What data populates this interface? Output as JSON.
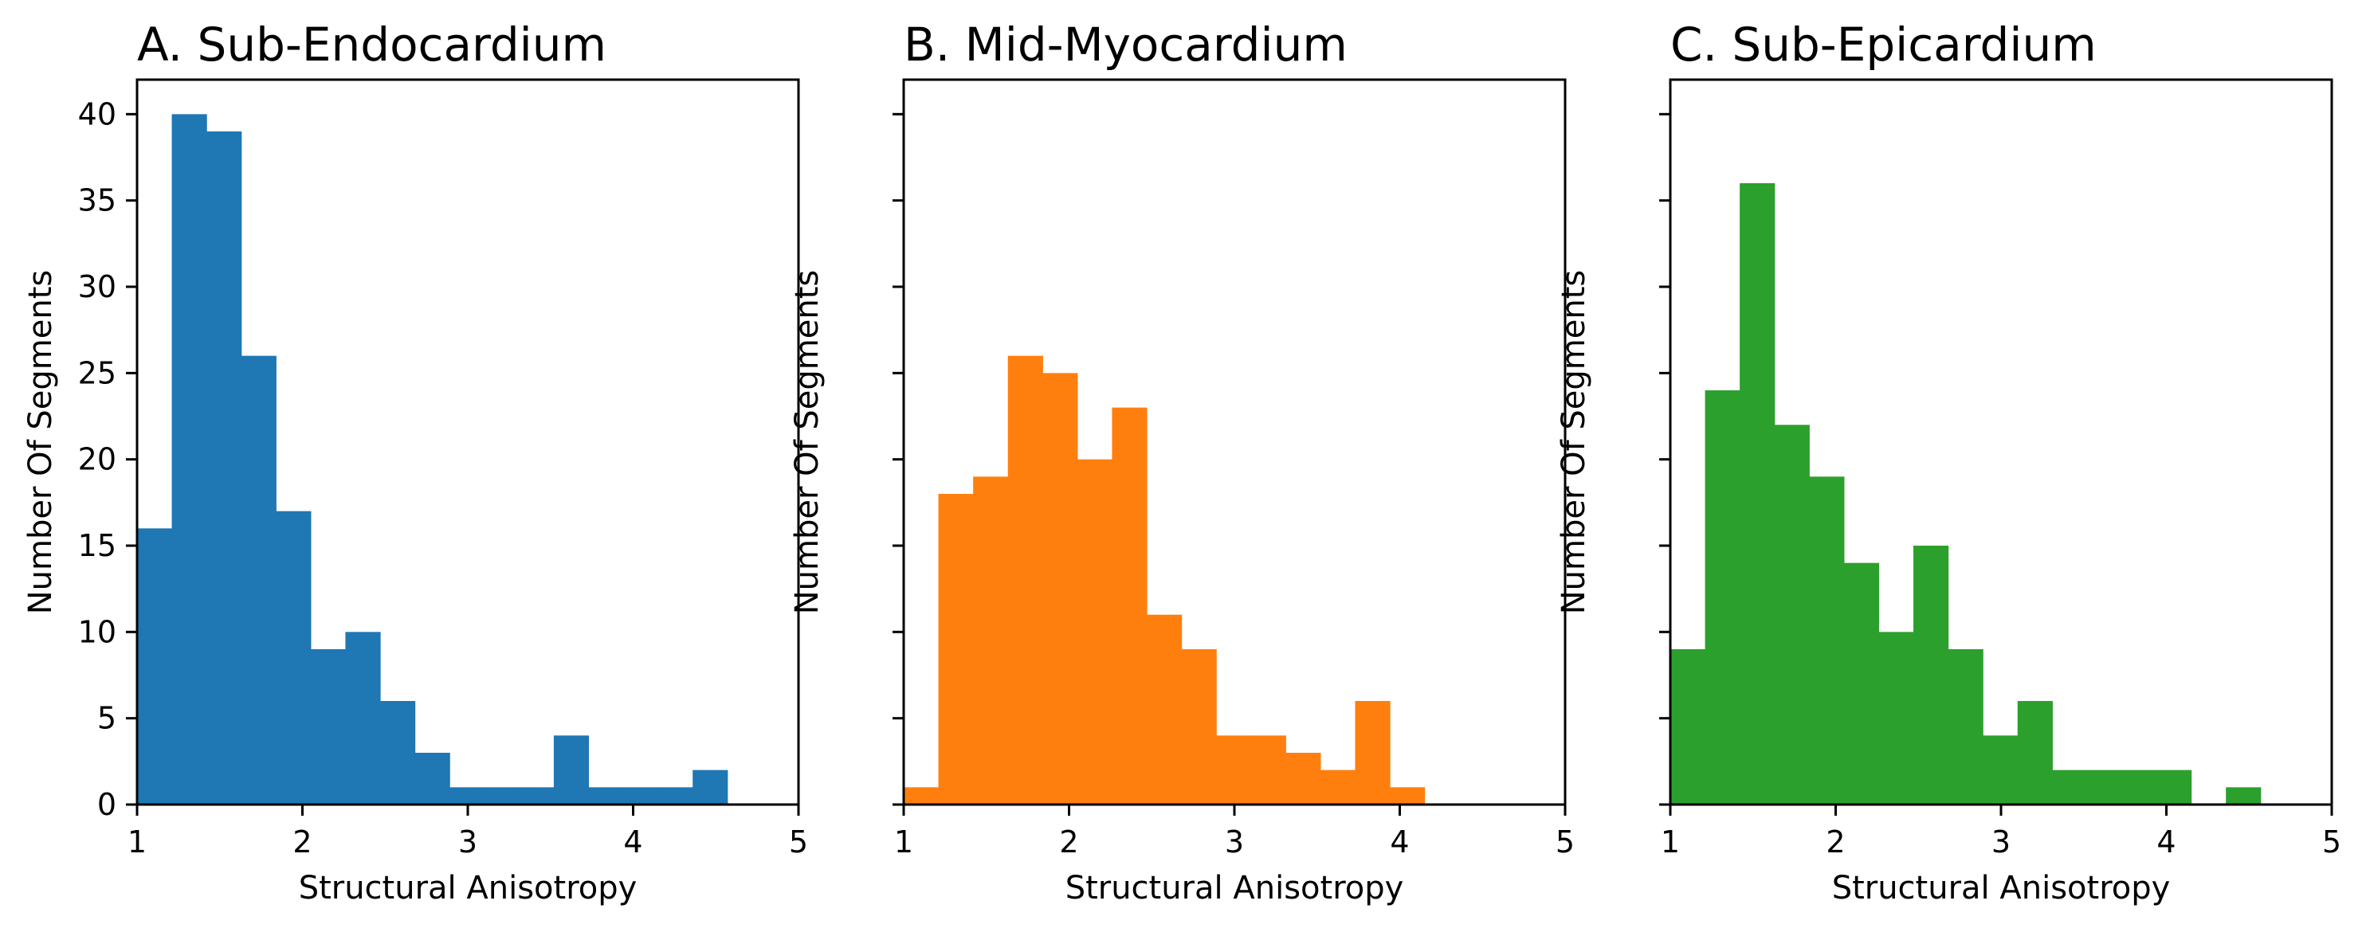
{
  "chart_data": [
    {
      "type": "bar",
      "subtype": "histogram",
      "title": "A. Sub-Endocardium",
      "xlabel": "Structural Anisotropy",
      "ylabel": "Number Of Segments",
      "xlim": [
        1,
        5
      ],
      "ylim": [
        0,
        42
      ],
      "xticks": [
        1,
        2,
        3,
        4,
        5
      ],
      "yticks": [
        0,
        5,
        10,
        15,
        20,
        25,
        30,
        35,
        40
      ],
      "show_ytick_labels": true,
      "color": "#1f77b4",
      "bin_start": 1.0,
      "bin_width": 0.21,
      "values": [
        16,
        40,
        39,
        26,
        17,
        9,
        10,
        6,
        3,
        1,
        1,
        1,
        4,
        1,
        1,
        1,
        2
      ]
    },
    {
      "type": "bar",
      "subtype": "histogram",
      "title": "B. Mid-Myocardium",
      "xlabel": "Structural Anisotropy",
      "ylabel": "Number Of Segments",
      "xlim": [
        1,
        5
      ],
      "ylim": [
        0,
        42
      ],
      "xticks": [
        1,
        2,
        3,
        4,
        5
      ],
      "yticks": [
        0,
        5,
        10,
        15,
        20,
        25,
        30,
        35,
        40
      ],
      "show_ytick_labels": false,
      "color": "#ff7f0e",
      "bin_start": 1.0,
      "bin_width": 0.21,
      "values": [
        1,
        18,
        19,
        26,
        25,
        20,
        23,
        11,
        9,
        4,
        4,
        3,
        2,
        6,
        1
      ]
    },
    {
      "type": "bar",
      "subtype": "histogram",
      "title": "C. Sub-Epicardium",
      "xlabel": "Structural Anisotropy",
      "ylabel": "Number Of Segments",
      "xlim": [
        1,
        5
      ],
      "ylim": [
        0,
        42
      ],
      "xticks": [
        1,
        2,
        3,
        4,
        5
      ],
      "yticks": [
        0,
        5,
        10,
        15,
        20,
        25,
        30,
        35,
        40
      ],
      "show_ytick_labels": false,
      "color": "#2ca02c",
      "bin_start": 1.0,
      "bin_width": 0.21,
      "values": [
        9,
        24,
        36,
        22,
        19,
        14,
        10,
        15,
        9,
        4,
        6,
        2,
        2,
        2,
        2,
        0,
        1
      ]
    }
  ]
}
